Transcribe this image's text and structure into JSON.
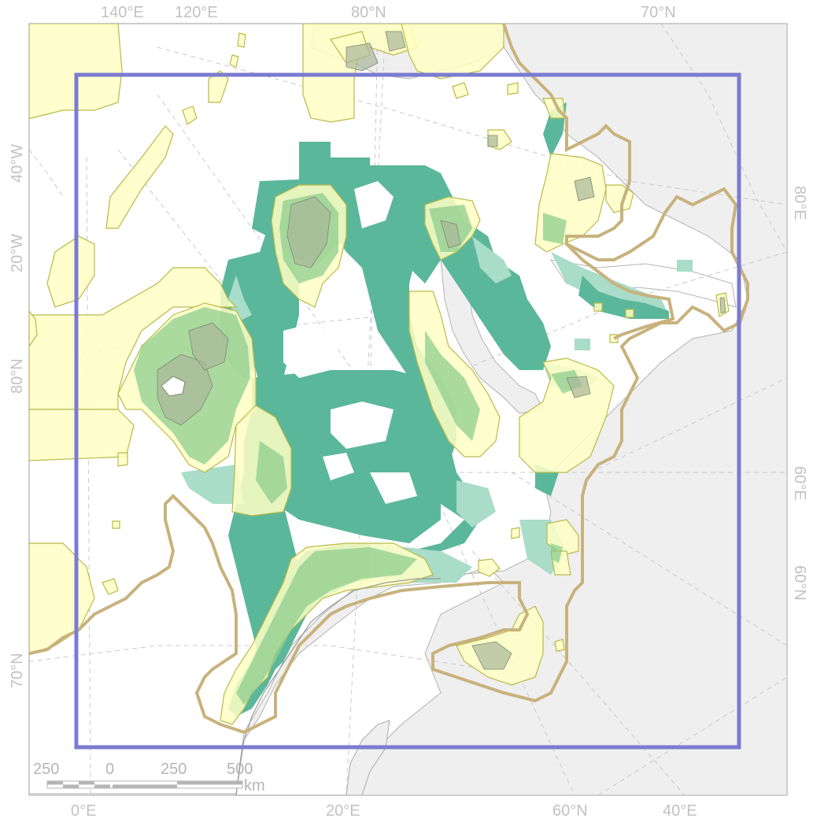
{
  "map": {
    "graticule_labels": {
      "top": [
        "140°E",
        "120°E",
        "80°N",
        "70°N"
      ],
      "left": [
        "40°W",
        "20°W",
        "80°N",
        "70°N"
      ],
      "right": [
        "80°E",
        "60°E",
        "60°N"
      ],
      "bottom": [
        "0°E",
        "20°E",
        "60°N",
        "40°E"
      ]
    },
    "scale_bar": {
      "ticks": [
        "250",
        "0",
        "250",
        "500"
      ],
      "unit": "km"
    },
    "colors": {
      "study_box": "#7b7bd1",
      "boundary": "#c8b27d",
      "protected_area_fill": "#ffffc4",
      "protected_area_stroke": "#b9b94a",
      "habitat_high": "#5bb79a",
      "habitat_low": "#a9dcc9",
      "land": "#efefef",
      "coast": "#a9a9a9"
    }
  }
}
